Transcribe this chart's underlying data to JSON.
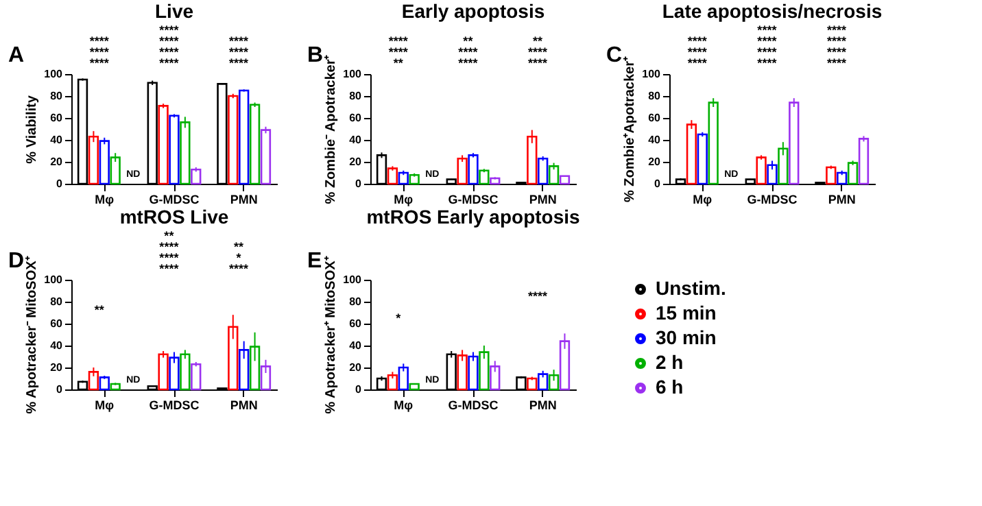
{
  "chart_data": [
    {
      "type": "bar",
      "title": "Live",
      "ylabel": "% Viability",
      "categories": [
        "Mφ",
        "G-MDSC",
        "PMN"
      ],
      "ylim": [
        0,
        100
      ],
      "yticks": [
        0,
        20,
        40,
        60,
        80,
        100
      ],
      "grid": false,
      "series": [
        {
          "color": "#000000",
          "values": [
            95,
            92,
            91
          ],
          "errors": [
            1,
            2,
            0.5
          ]
        },
        {
          "color": "#ff0000",
          "values": [
            43,
            71,
            80
          ],
          "errors": [
            5,
            2,
            2
          ]
        },
        {
          "color": "#0000ff",
          "values": [
            39,
            62,
            85
          ],
          "errors": [
            3,
            1.5,
            1
          ]
        },
        {
          "color": "#00b000",
          "values": [
            24,
            56,
            72
          ],
          "errors": [
            4,
            5,
            2
          ]
        },
        {
          "color": "#9b30f0",
          "values": [
            null,
            13,
            49
          ],
          "errors": [
            null,
            2,
            3
          ]
        }
      ],
      "annotations": [
        "A",
        "****",
        "****",
        "****",
        "****",
        "****",
        "****",
        "****",
        "****",
        "****",
        "****",
        {
          "text": "ND",
          "x": "Mφ",
          "y": 0
        }
      ]
    },
    {
      "type": "bar",
      "title": "Early apoptosis",
      "ylabel": "% Zombie⁻ Apotracker⁺",
      "categories": [
        "Mφ",
        "G-MDSC",
        "PMN"
      ],
      "ylim": [
        0,
        100
      ],
      "yticks": [
        0,
        20,
        40,
        60,
        80,
        100
      ],
      "grid": false,
      "series": [
        {
          "color": "#000000",
          "values": [
            26,
            4,
            1
          ],
          "errors": [
            2.5,
            0.5,
            null
          ]
        },
        {
          "color": "#ff0000",
          "values": [
            14,
            23,
            43
          ],
          "errors": [
            2,
            3,
            6
          ]
        },
        {
          "color": "#0000ff",
          "values": [
            10,
            26,
            23
          ],
          "errors": [
            2,
            2,
            2
          ]
        },
        {
          "color": "#00b000",
          "values": [
            8,
            12,
            16
          ],
          "errors": [
            1.5,
            1.5,
            3
          ]
        },
        {
          "color": "#9b30f0",
          "values": [
            null,
            5,
            7
          ],
          "errors": [
            null,
            1,
            0.5
          ]
        }
      ],
      "annotations": [
        "B",
        "**",
        "****",
        "****",
        "****",
        "****",
        "**",
        "****",
        "****",
        "**",
        {
          "text": "ND",
          "x": "Mφ",
          "y": 0
        }
      ]
    },
    {
      "type": "bar",
      "title": "Late apoptosis/necrosis",
      "ylabel": "% Zombie⁺Apotracker⁺",
      "categories": [
        "Mφ",
        "G-MDSC",
        "PMN"
      ],
      "ylim": [
        0,
        100
      ],
      "yticks": [
        0,
        20,
        40,
        60,
        80,
        100
      ],
      "grid": false,
      "series": [
        {
          "color": "#000000",
          "values": [
            4,
            4,
            1
          ],
          "errors": [
            1,
            0.5,
            null
          ]
        },
        {
          "color": "#ff0000",
          "values": [
            54,
            24,
            15
          ],
          "errors": [
            4,
            2,
            1.5
          ]
        },
        {
          "color": "#0000ff",
          "values": [
            45,
            17,
            10
          ],
          "errors": [
            2,
            4,
            2
          ]
        },
        {
          "color": "#00b000",
          "values": [
            74,
            32,
            19
          ],
          "errors": [
            4,
            6,
            2
          ]
        },
        {
          "color": "#9b30f0",
          "values": [
            null,
            74,
            41
          ],
          "errors": [
            null,
            4,
            2.5
          ]
        }
      ],
      "annotations": [
        "C",
        "****",
        "****",
        "****",
        "****",
        "****",
        "****",
        "****",
        "****",
        "****",
        "****",
        "****",
        {
          "text": "ND",
          "x": "Mφ",
          "y": 0
        }
      ]
    },
    {
      "type": "bar",
      "title": "mtROS Live",
      "ylabel": "% Apotracker⁻ MitoSOX⁺",
      "categories": [
        "Mφ",
        "G-MDSC",
        "PMN"
      ],
      "ylim": [
        0,
        100
      ],
      "yticks": [
        0,
        20,
        40,
        60,
        80,
        100
      ],
      "grid": false,
      "series": [
        {
          "color": "#000000",
          "values": [
            7,
            3,
            1
          ],
          "errors": [
            1,
            0.5,
            null
          ]
        },
        {
          "color": "#ff0000",
          "values": [
            16,
            32,
            57
          ],
          "errors": [
            4,
            3,
            11
          ]
        },
        {
          "color": "#0000ff",
          "values": [
            11,
            29,
            36
          ],
          "errors": [
            1.5,
            5,
            8
          ]
        },
        {
          "color": "#00b000",
          "values": [
            5,
            32,
            39
          ],
          "errors": [
            1,
            4,
            13
          ]
        },
        {
          "color": "#9b30f0",
          "values": [
            null,
            23,
            21
          ],
          "errors": [
            null,
            2,
            6
          ]
        }
      ],
      "annotations": [
        "D",
        "**",
        "****",
        "****",
        "****",
        "**",
        "****",
        "*",
        "**",
        {
          "text": "ND",
          "x": "Mφ",
          "y": 0
        }
      ]
    },
    {
      "type": "bar",
      "title": "mtROS Early apoptosis",
      "ylabel": "% Apotracker⁺ MitoSOX⁺",
      "categories": [
        "Mφ",
        "G-MDSC",
        "PMN"
      ],
      "ylim": [
        0,
        100
      ],
      "yticks": [
        0,
        20,
        40,
        60,
        80,
        100
      ],
      "grid": false,
      "legend": "right",
      "series": [
        {
          "name": "Unstim.",
          "color": "#000000",
          "values": [
            10,
            32,
            11
          ],
          "errors": [
            2,
            3,
            1
          ]
        },
        {
          "name": "15 min",
          "color": "#ff0000",
          "values": [
            13,
            31,
            10
          ],
          "errors": [
            3,
            5,
            1.5
          ]
        },
        {
          "name": "30 min",
          "color": "#0000ff",
          "values": [
            20,
            30,
            14
          ],
          "errors": [
            3.5,
            4,
            3
          ]
        },
        {
          "name": "2 h",
          "color": "#00b000",
          "values": [
            5,
            34,
            13
          ],
          "errors": [
            0.5,
            6,
            5
          ]
        },
        {
          "name": "6 h",
          "color": "#9b30f0",
          "values": [
            null,
            21,
            44
          ],
          "errors": [
            null,
            5,
            7
          ]
        }
      ],
      "annotations": [
        "E",
        "*",
        "****",
        {
          "text": "ND",
          "x": "Mφ",
          "y": 0
        }
      ]
    }
  ]
}
